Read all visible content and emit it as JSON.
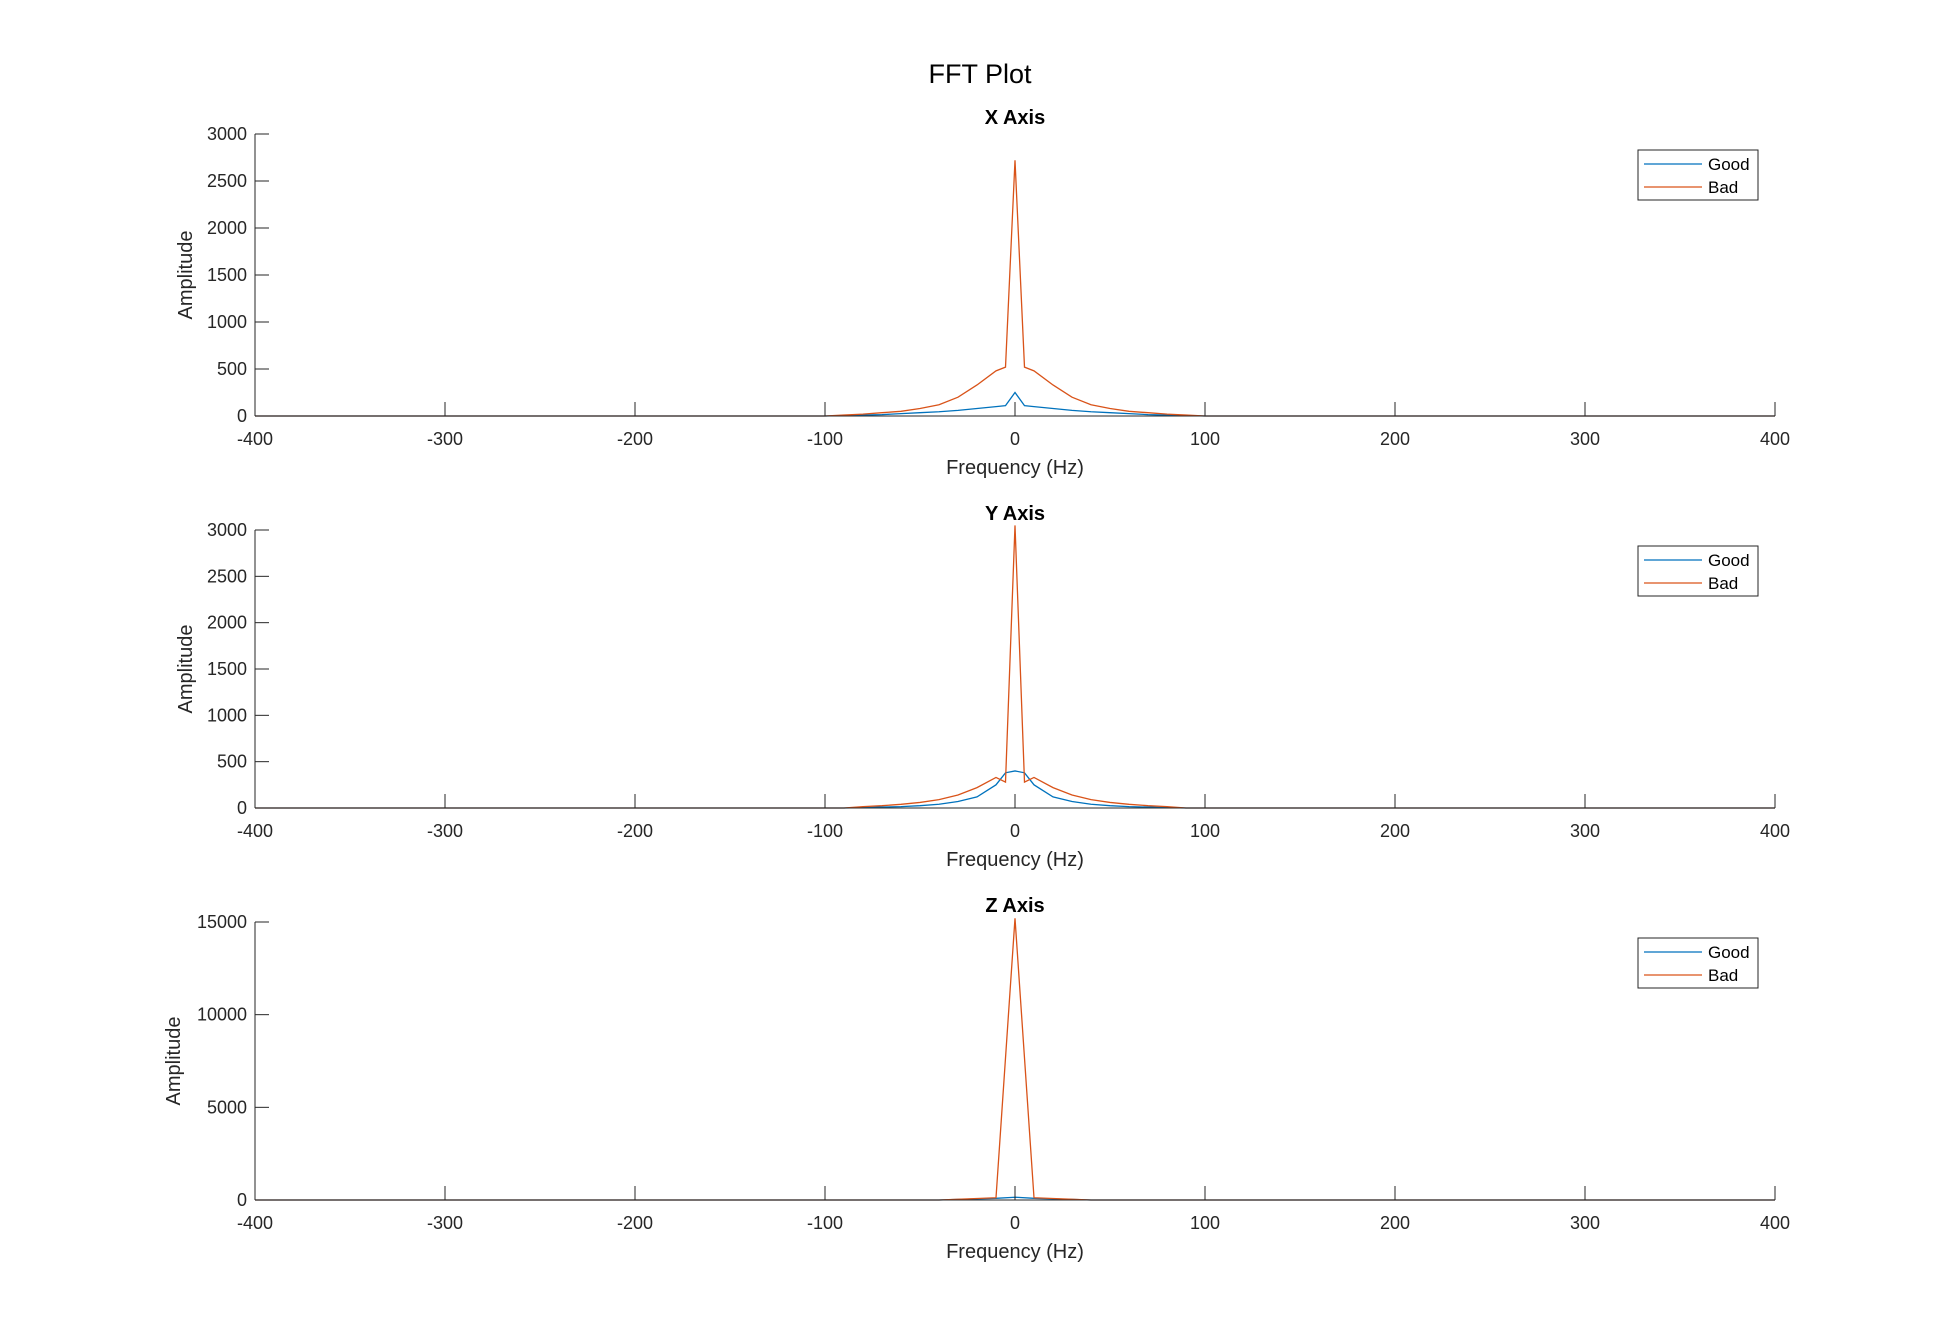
{
  "figure_title": "FFT Plot",
  "colors": {
    "good": "#0072BD",
    "bad": "#D95319",
    "axis": "#262626"
  },
  "chart_data": [
    {
      "type": "line",
      "title": "X Axis",
      "xlabel": "Frequency (Hz)",
      "ylabel": "Amplitude",
      "xlim": [
        -400,
        400
      ],
      "ylim": [
        0,
        3000
      ],
      "xticks": [
        -400,
        -300,
        -200,
        -100,
        0,
        100,
        200,
        300,
        400
      ],
      "yticks": [
        0,
        500,
        1000,
        1500,
        2000,
        2500,
        3000
      ],
      "legend": {
        "position": "top-right"
      },
      "series": [
        {
          "name": "Good",
          "color": "#0072BD",
          "x": [
            -400,
            -100,
            -90,
            -80,
            -70,
            -60,
            -50,
            -40,
            -30,
            -20,
            -10,
            -5,
            0,
            5,
            10,
            20,
            30,
            40,
            50,
            60,
            70,
            80,
            90,
            100,
            400
          ],
          "y": [
            0,
            0,
            5,
            10,
            15,
            25,
            35,
            45,
            60,
            80,
            100,
            110,
            250,
            110,
            100,
            80,
            60,
            45,
            35,
            25,
            15,
            10,
            5,
            0,
            0
          ]
        },
        {
          "name": "Bad",
          "color": "#D95319",
          "x": [
            -400,
            -100,
            -90,
            -80,
            -70,
            -60,
            -50,
            -40,
            -30,
            -20,
            -10,
            -5,
            0,
            5,
            10,
            20,
            30,
            40,
            50,
            60,
            70,
            80,
            90,
            100,
            400
          ],
          "y": [
            0,
            0,
            10,
            20,
            35,
            50,
            80,
            120,
            200,
            330,
            480,
            520,
            2720,
            520,
            480,
            330,
            200,
            120,
            80,
            50,
            35,
            20,
            10,
            0,
            0
          ]
        }
      ]
    },
    {
      "type": "line",
      "title": "Y Axis",
      "xlabel": "Frequency (Hz)",
      "ylabel": "Amplitude",
      "xlim": [
        -400,
        400
      ],
      "ylim": [
        0,
        3000
      ],
      "xticks": [
        -400,
        -300,
        -200,
        -100,
        0,
        100,
        200,
        300,
        400
      ],
      "yticks": [
        0,
        500,
        1000,
        1500,
        2000,
        2500,
        3000
      ],
      "legend": {
        "position": "top-right"
      },
      "series": [
        {
          "name": "Good",
          "color": "#0072BD",
          "x": [
            -400,
            -90,
            -80,
            -70,
            -60,
            -50,
            -40,
            -30,
            -20,
            -10,
            -5,
            0,
            5,
            10,
            20,
            30,
            40,
            50,
            60,
            70,
            80,
            90,
            400
          ],
          "y": [
            0,
            0,
            5,
            10,
            15,
            25,
            40,
            70,
            120,
            250,
            380,
            400,
            380,
            250,
            120,
            70,
            40,
            25,
            15,
            10,
            5,
            0,
            0
          ]
        },
        {
          "name": "Bad",
          "color": "#D95319",
          "x": [
            -400,
            -90,
            -80,
            -70,
            -60,
            -50,
            -40,
            -30,
            -20,
            -10,
            -5,
            0,
            5,
            10,
            20,
            30,
            40,
            50,
            60,
            70,
            80,
            90,
            400
          ],
          "y": [
            0,
            0,
            15,
            25,
            40,
            60,
            90,
            140,
            220,
            330,
            280,
            3050,
            280,
            330,
            220,
            140,
            90,
            60,
            40,
            25,
            15,
            0,
            0
          ]
        }
      ]
    },
    {
      "type": "line",
      "title": "Z Axis",
      "xlabel": "Frequency (Hz)",
      "ylabel": "Amplitude",
      "xlim": [
        -400,
        400
      ],
      "ylim": [
        0,
        15000
      ],
      "xticks": [
        -400,
        -300,
        -200,
        -100,
        0,
        100,
        200,
        300,
        400
      ],
      "yticks": [
        0,
        5000,
        10000,
        15000
      ],
      "legend": {
        "position": "top-right"
      },
      "series": [
        {
          "name": "Good",
          "color": "#0072BD",
          "x": [
            -400,
            -40,
            -30,
            -20,
            -10,
            0,
            10,
            20,
            30,
            40,
            400
          ],
          "y": [
            0,
            0,
            30,
            60,
            90,
            150,
            90,
            60,
            30,
            0,
            0
          ]
        },
        {
          "name": "Bad",
          "color": "#D95319",
          "x": [
            -400,
            -40,
            -30,
            -20,
            -10,
            0,
            10,
            20,
            30,
            40,
            400
          ],
          "y": [
            0,
            0,
            40,
            80,
            120,
            15200,
            120,
            80,
            40,
            0,
            0
          ]
        }
      ]
    }
  ]
}
